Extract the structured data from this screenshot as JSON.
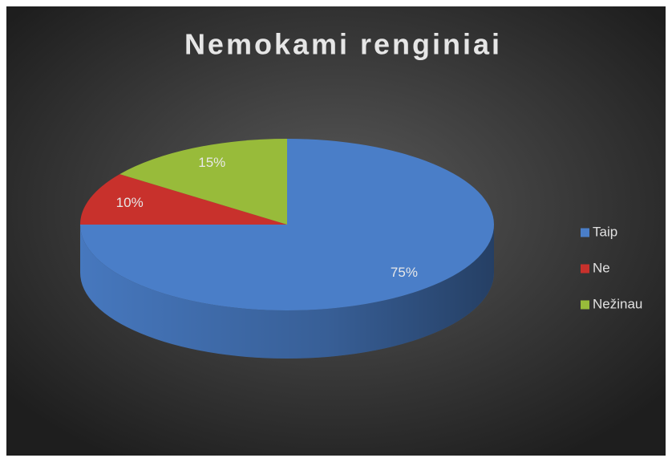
{
  "chart_data": {
    "type": "pie",
    "title": "Nemokami renginiai",
    "categories": [
      "Taip",
      "Ne",
      "Nežinau"
    ],
    "values": [
      75,
      10,
      15
    ],
    "value_labels": [
      "75%",
      "10%",
      "15%"
    ],
    "colors": [
      "#4a7ec8",
      "#c8312c",
      "#98bb3a"
    ],
    "legend": "right"
  }
}
